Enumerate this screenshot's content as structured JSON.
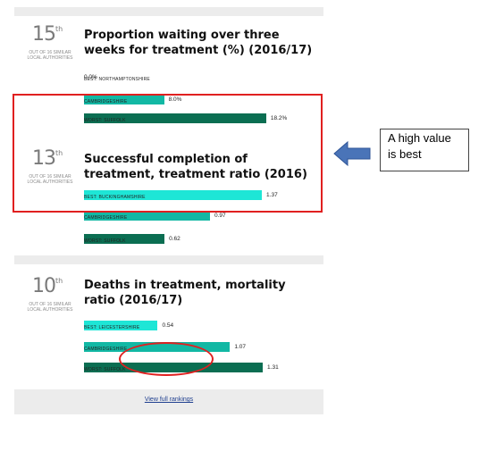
{
  "colors": {
    "best": "#1ee6d6",
    "mid": "#12b8a4",
    "worst": "#0b6e52",
    "accent_red": "#e02020"
  },
  "rank_suffix": "th",
  "rank_subtext": "OUT OF 16 SIMILAR LOCAL AUTHORITIES",
  "cards": [
    {
      "rank": "15",
      "title": "Proportion waiting over three weeks for treatment (%) (2016/17)",
      "bars": [
        {
          "value": 0.0,
          "value_text": "0.0%",
          "label": "BEST: NORTHAMPTONSHIRE",
          "role": "best"
        },
        {
          "value": 8.0,
          "value_text": "8.0%",
          "label": "CAMBRIDGESHIRE",
          "role": "mid"
        },
        {
          "value": 18.2,
          "value_text": "18.2%",
          "label": "WORST: SUFFOLK",
          "role": "worst"
        }
      ]
    },
    {
      "rank": "13",
      "title": "Successful completion of treatment, treatment ratio (2016)",
      "bars": [
        {
          "value": 1.37,
          "value_text": "1.37",
          "label": "BEST: BUCKINGHAMSHIRE",
          "role": "best"
        },
        {
          "value": 0.97,
          "value_text": "0.97",
          "label": "CAMBRIDGESHIRE",
          "role": "mid"
        },
        {
          "value": 0.62,
          "value_text": "0.62",
          "label": "WORST: SUFFOLK",
          "role": "worst"
        }
      ]
    },
    {
      "rank": "10",
      "title": "Deaths in treatment, mortality ratio (2016/17)",
      "bars": [
        {
          "value": 0.54,
          "value_text": "0.54",
          "label": "BEST: LEICESTERSHIRE",
          "role": "best"
        },
        {
          "value": 1.07,
          "value_text": "1.07",
          "label": "CAMBRIDGESHIRE",
          "role": "mid"
        },
        {
          "value": 1.31,
          "value_text": "1.31",
          "label": "WORST: SUFFOLK",
          "role": "worst"
        }
      ]
    }
  ],
  "view_link": "View full rankings",
  "callout": {
    "text": "A high value is best"
  }
}
